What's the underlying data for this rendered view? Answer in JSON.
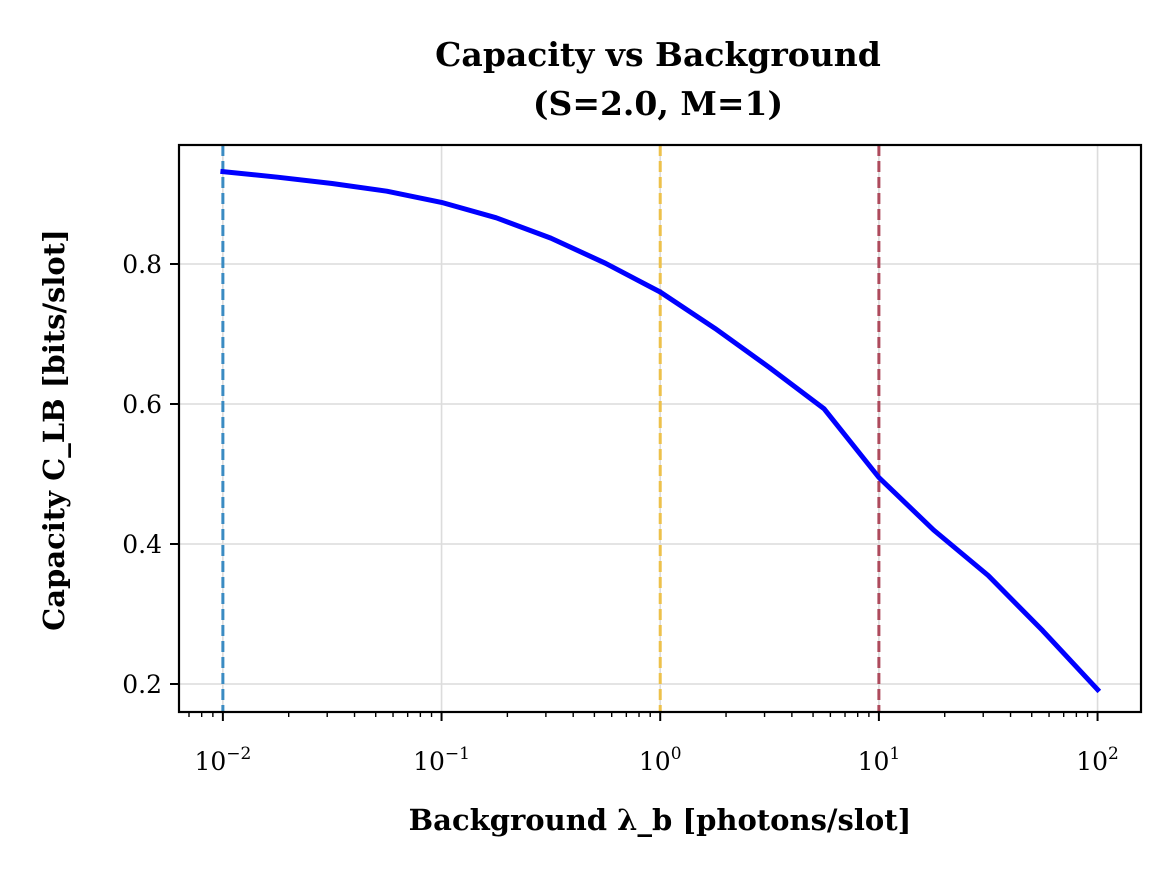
{
  "chart_data": {
    "type": "line",
    "title": "Capacity vs Background",
    "subtitle": "(S=2.0, M=1)",
    "xlabel": "Background λ_b [photons/slot]",
    "ylabel": "Capacity C_LB [bits/slot]",
    "x_scale": "log",
    "xlim": [
      0.0063,
      158
    ],
    "ylim": [
      0.16,
      0.97
    ],
    "x_ticks": [
      {
        "value": 0.01,
        "base": "10",
        "exp": "−2"
      },
      {
        "value": 0.1,
        "base": "10",
        "exp": "−1"
      },
      {
        "value": 1,
        "base": "10",
        "exp": "0"
      },
      {
        "value": 10,
        "base": "10",
        "exp": "1"
      },
      {
        "value": 100,
        "base": "10",
        "exp": "2"
      }
    ],
    "y_ticks": [
      {
        "value": 0.2,
        "label": "0.2"
      },
      {
        "value": 0.4,
        "label": "0.4"
      },
      {
        "value": 0.6,
        "label": "0.6"
      },
      {
        "value": 0.8,
        "label": "0.8"
      }
    ],
    "grid": true,
    "series": [
      {
        "color": "#0000ff",
        "x": [
          0.01,
          0.0178,
          0.0316,
          0.0562,
          0.1,
          0.178,
          0.316,
          0.562,
          1,
          1.78,
          3.16,
          5.62,
          10,
          17.8,
          31.6,
          56.2,
          100
        ],
        "y": [
          0.932,
          0.924,
          0.915,
          0.904,
          0.888,
          0.866,
          0.837,
          0.801,
          0.76,
          0.708,
          0.652,
          0.593,
          0.495,
          0.42,
          0.355,
          0.276,
          0.192
        ]
      }
    ],
    "vlines": [
      {
        "x": 0.01,
        "color": "#3a8bc2",
        "style": "dashed"
      },
      {
        "x": 1,
        "color": "#edc14b",
        "style": "dashed"
      },
      {
        "x": 10,
        "color": "#ad4a5c",
        "style": "dashed"
      }
    ]
  }
}
